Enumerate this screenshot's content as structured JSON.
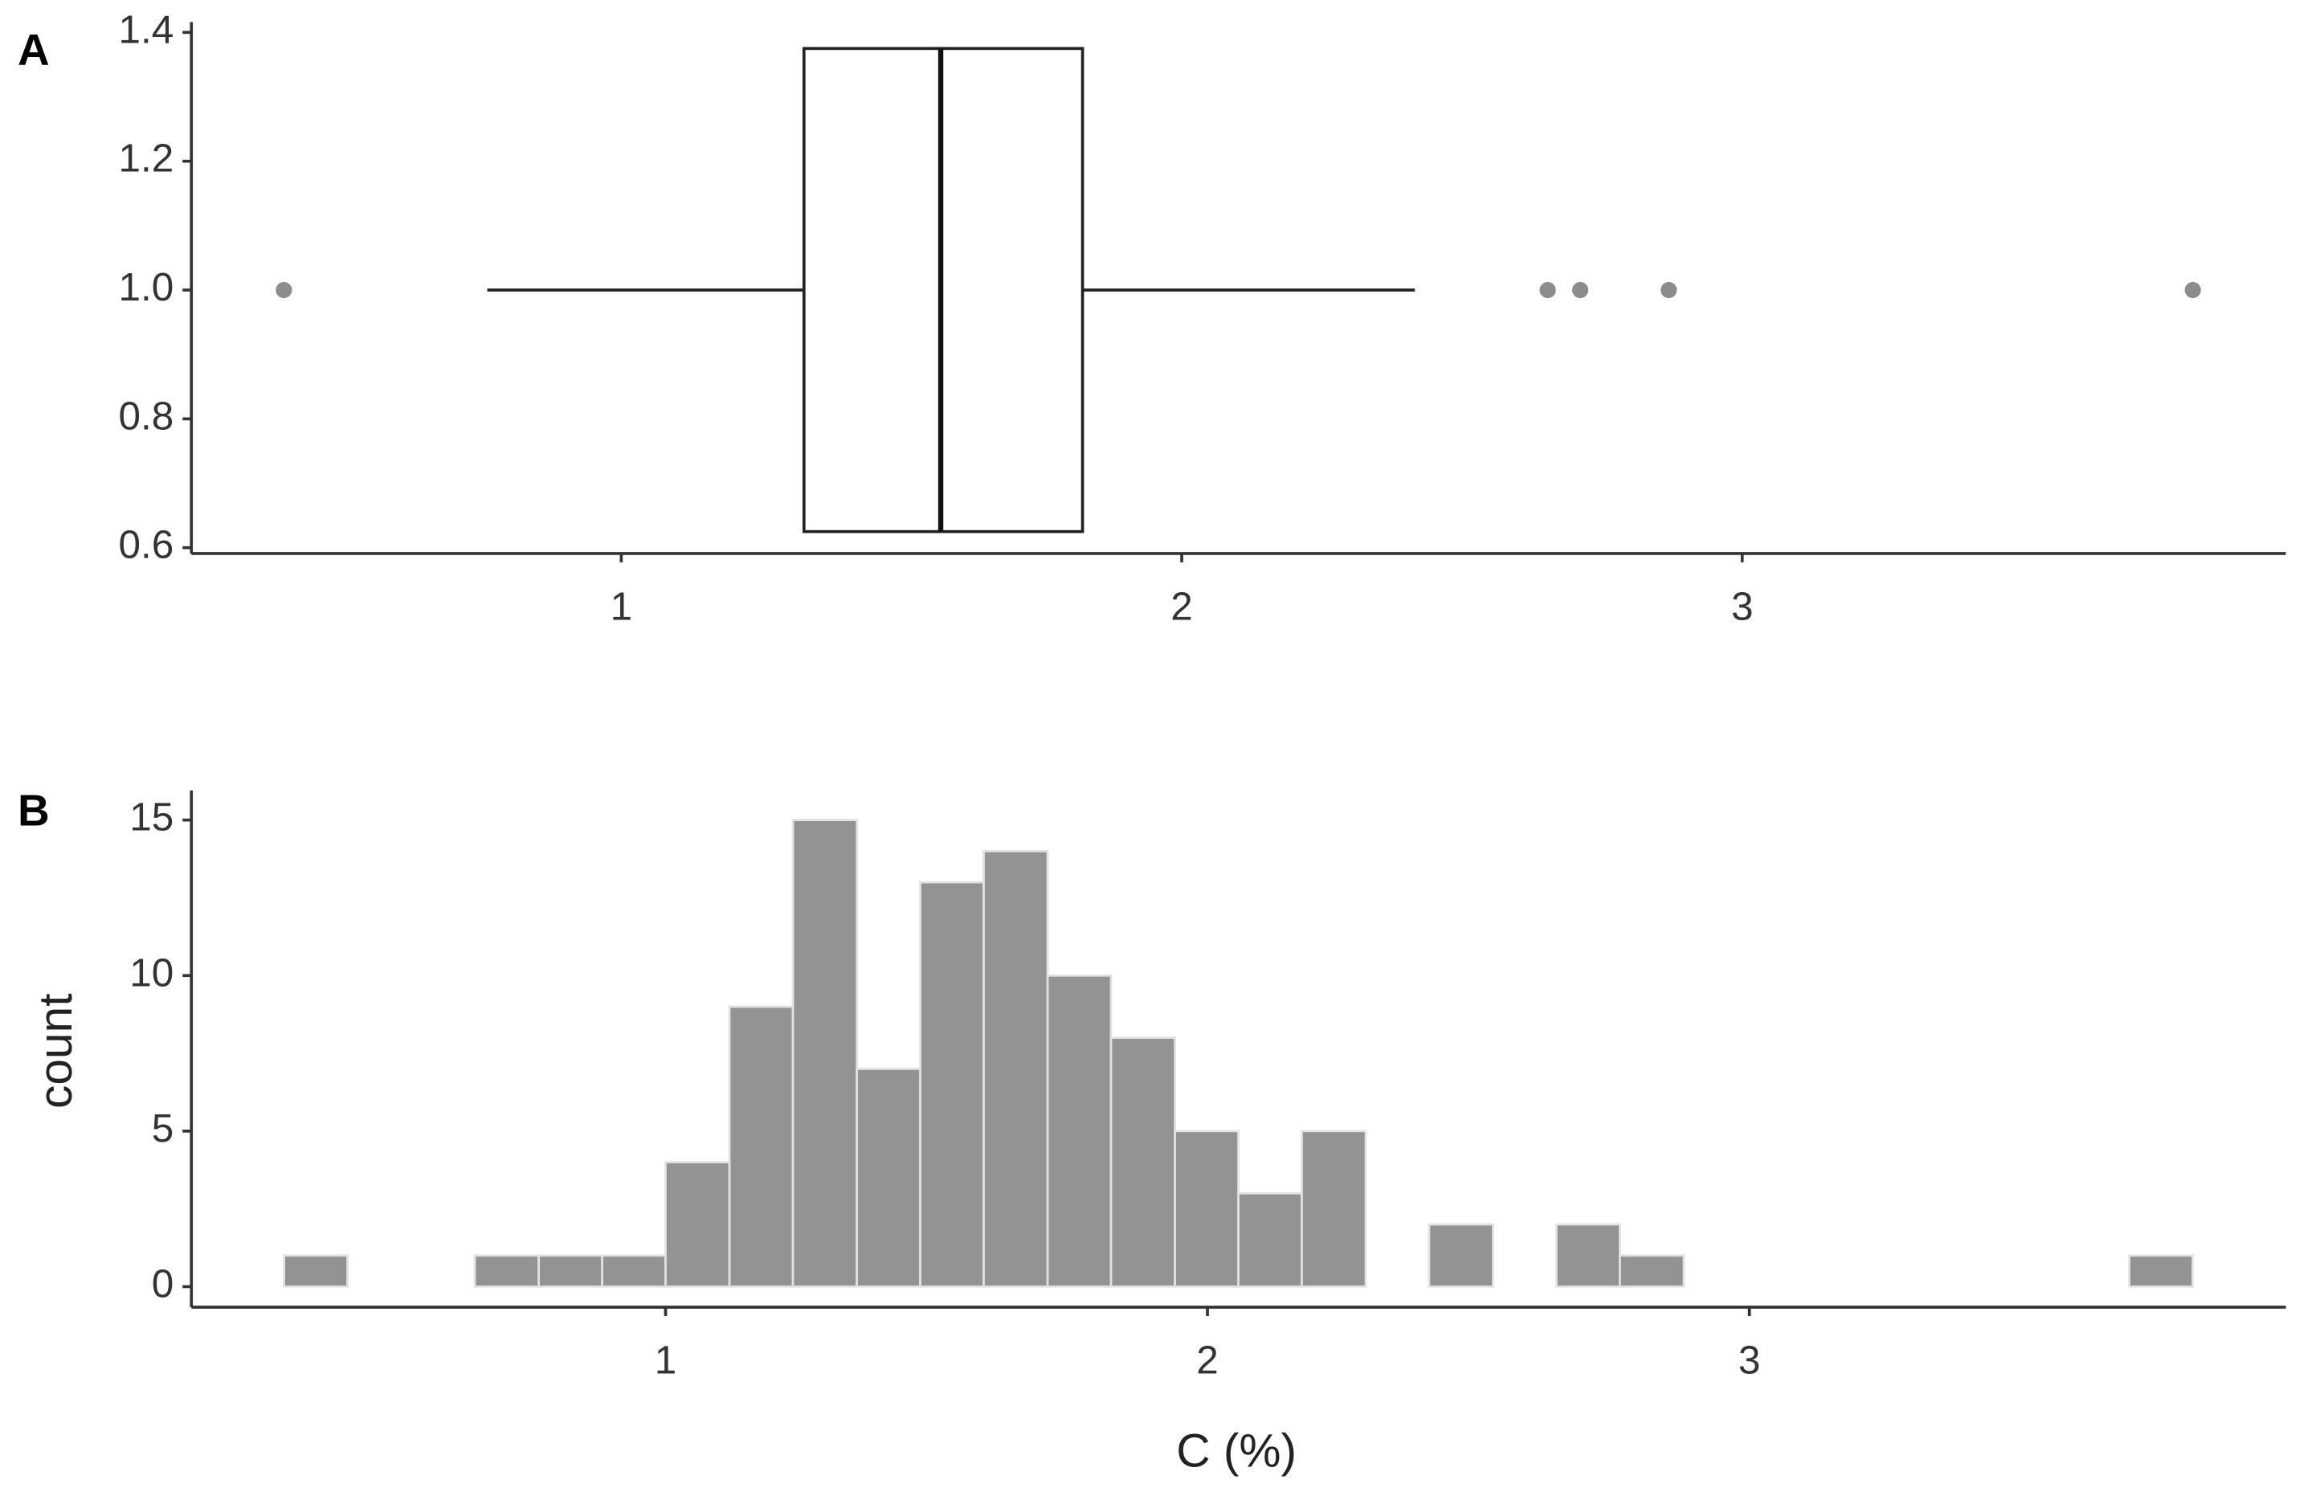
{
  "chart_data": [
    {
      "type": "box",
      "tag": "A",
      "xlim": [
        0.233,
        3.97
      ],
      "xticks": [
        1,
        2,
        3
      ],
      "ylim": [
        0.591,
        1.416
      ],
      "yticks": [
        0.6,
        0.8,
        {
          "value": 1,
          "label": "1.0"
        },
        1.2,
        1.4
      ],
      "position": 1,
      "width": 0.75,
      "whisker_low": 0.761,
      "q1": 1.326,
      "median": 1.57,
      "q3": 1.823,
      "whisker_high": 2.416,
      "outliers": [
        0.398,
        2.653,
        2.711,
        2.869,
        3.804
      ],
      "color": "#ffffff",
      "outlier_color": "#8c8c8c"
    },
    {
      "type": "histogram",
      "tag": "B",
      "xlabel": "C (%)",
      "ylabel": "count",
      "xlim": [
        0.125,
        3.99
      ],
      "xticks": [
        1,
        2,
        3
      ],
      "ylim": [
        -0.66,
        15.95
      ],
      "yticks": [
        0,
        5,
        10,
        15
      ],
      "bins": [
        0.296,
        0.413,
        0.531,
        0.648,
        0.766,
        0.883,
        1.0,
        1.118,
        1.235,
        1.353,
        1.47,
        1.587,
        1.705,
        1.822,
        1.94,
        2.057,
        2.174,
        2.292,
        2.409,
        2.527,
        2.644,
        2.761,
        2.879,
        2.996,
        3.114,
        3.231,
        3.348,
        3.466,
        3.583,
        3.701,
        3.818
      ],
      "values": [
        1,
        0,
        0,
        1,
        1,
        1,
        4,
        9,
        15,
        7,
        13,
        14,
        10,
        8,
        5,
        3,
        5,
        0,
        2,
        0,
        2,
        1,
        0,
        0,
        0,
        0,
        0,
        0,
        0,
        1
      ],
      "color": "#939393"
    }
  ]
}
